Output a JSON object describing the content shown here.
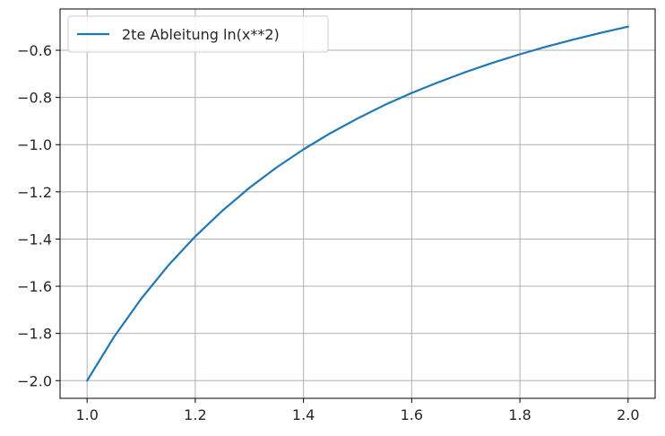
{
  "chart_data": {
    "type": "line",
    "title": "",
    "xlabel": "",
    "ylabel": "",
    "xlim": [
      0.95,
      2.05
    ],
    "ylim": [
      -2.075,
      -0.425
    ],
    "xticks": [
      1.0,
      1.2,
      1.4,
      1.6,
      1.8,
      2.0
    ],
    "xtick_labels": [
      "1.0",
      "1.2",
      "1.4",
      "1.6",
      "1.8",
      "2.0"
    ],
    "yticks": [
      -2.0,
      -1.8,
      -1.6,
      -1.4,
      -1.2,
      -1.0,
      -0.8,
      -0.6
    ],
    "ytick_labels": [
      "−2.0",
      "−1.8",
      "−1.6",
      "−1.4",
      "−1.2",
      "−1.0",
      "−0.8",
      "−0.6"
    ],
    "grid": true,
    "legend_position": "top-left",
    "series": [
      {
        "name": "2te Ableitung ln(x**2)",
        "color": "#1f77b4",
        "x": [
          1.0,
          1.05,
          1.1,
          1.15,
          1.2,
          1.25,
          1.3,
          1.35,
          1.4,
          1.45,
          1.5,
          1.55,
          1.6,
          1.65,
          1.7,
          1.75,
          1.8,
          1.85,
          1.9,
          1.95,
          2.0
        ],
        "y": [
          -2.0,
          -1.814,
          -1.653,
          -1.512,
          -1.389,
          -1.28,
          -1.183,
          -1.097,
          -1.02,
          -0.951,
          -0.889,
          -0.832,
          -0.781,
          -0.735,
          -0.692,
          -0.653,
          -0.617,
          -0.584,
          -0.554,
          -0.526,
          -0.5
        ]
      }
    ]
  }
}
